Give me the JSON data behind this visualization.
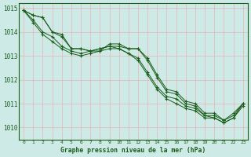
{
  "title": "Graphe pression niveau de la mer (hPa)",
  "bg_color": "#ceeae6",
  "grid_color": "#e8b4b8",
  "line_color": "#1a5c1a",
  "x_ticks": [
    0,
    1,
    2,
    3,
    4,
    5,
    6,
    7,
    8,
    9,
    10,
    11,
    12,
    13,
    14,
    15,
    16,
    17,
    18,
    19,
    20,
    21,
    22,
    23
  ],
  "ylim": [
    1009.5,
    1015.2
  ],
  "yticks": [
    1010,
    1011,
    1012,
    1013,
    1014,
    1015
  ],
  "series": [
    [
      1014.9,
      1014.7,
      1014.6,
      1014.0,
      1013.9,
      1013.3,
      1013.3,
      1013.2,
      1013.2,
      1013.5,
      1013.5,
      1013.3,
      1013.3,
      1012.9,
      1012.2,
      1011.6,
      1011.5,
      1011.1,
      1011.0,
      1010.6,
      1010.6,
      1010.3,
      1010.6,
      1011.0
    ],
    [
      1014.9,
      1014.7,
      1014.6,
      1014.0,
      1013.8,
      1013.3,
      1013.3,
      1013.2,
      1013.3,
      1013.4,
      1013.4,
      1013.3,
      1013.3,
      1012.8,
      1012.1,
      1011.5,
      1011.4,
      1011.0,
      1010.9,
      1010.5,
      1010.5,
      1010.3,
      1010.5,
      1011.0
    ],
    [
      1014.9,
      1014.5,
      1014.0,
      1013.8,
      1013.4,
      1013.2,
      1013.1,
      1013.2,
      1013.3,
      1013.4,
      1013.3,
      1013.1,
      1012.9,
      1012.3,
      1011.7,
      1011.3,
      1011.2,
      1010.9,
      1010.8,
      1010.5,
      1010.4,
      1010.2,
      1010.4,
      1011.0
    ],
    [
      1014.9,
      1014.4,
      1013.9,
      1013.6,
      1013.3,
      1013.1,
      1013.0,
      1013.1,
      1013.2,
      1013.3,
      1013.3,
      1013.1,
      1012.8,
      1012.2,
      1011.6,
      1011.2,
      1011.0,
      1010.8,
      1010.7,
      1010.4,
      1010.4,
      1010.2,
      1010.4,
      1010.9
    ]
  ]
}
